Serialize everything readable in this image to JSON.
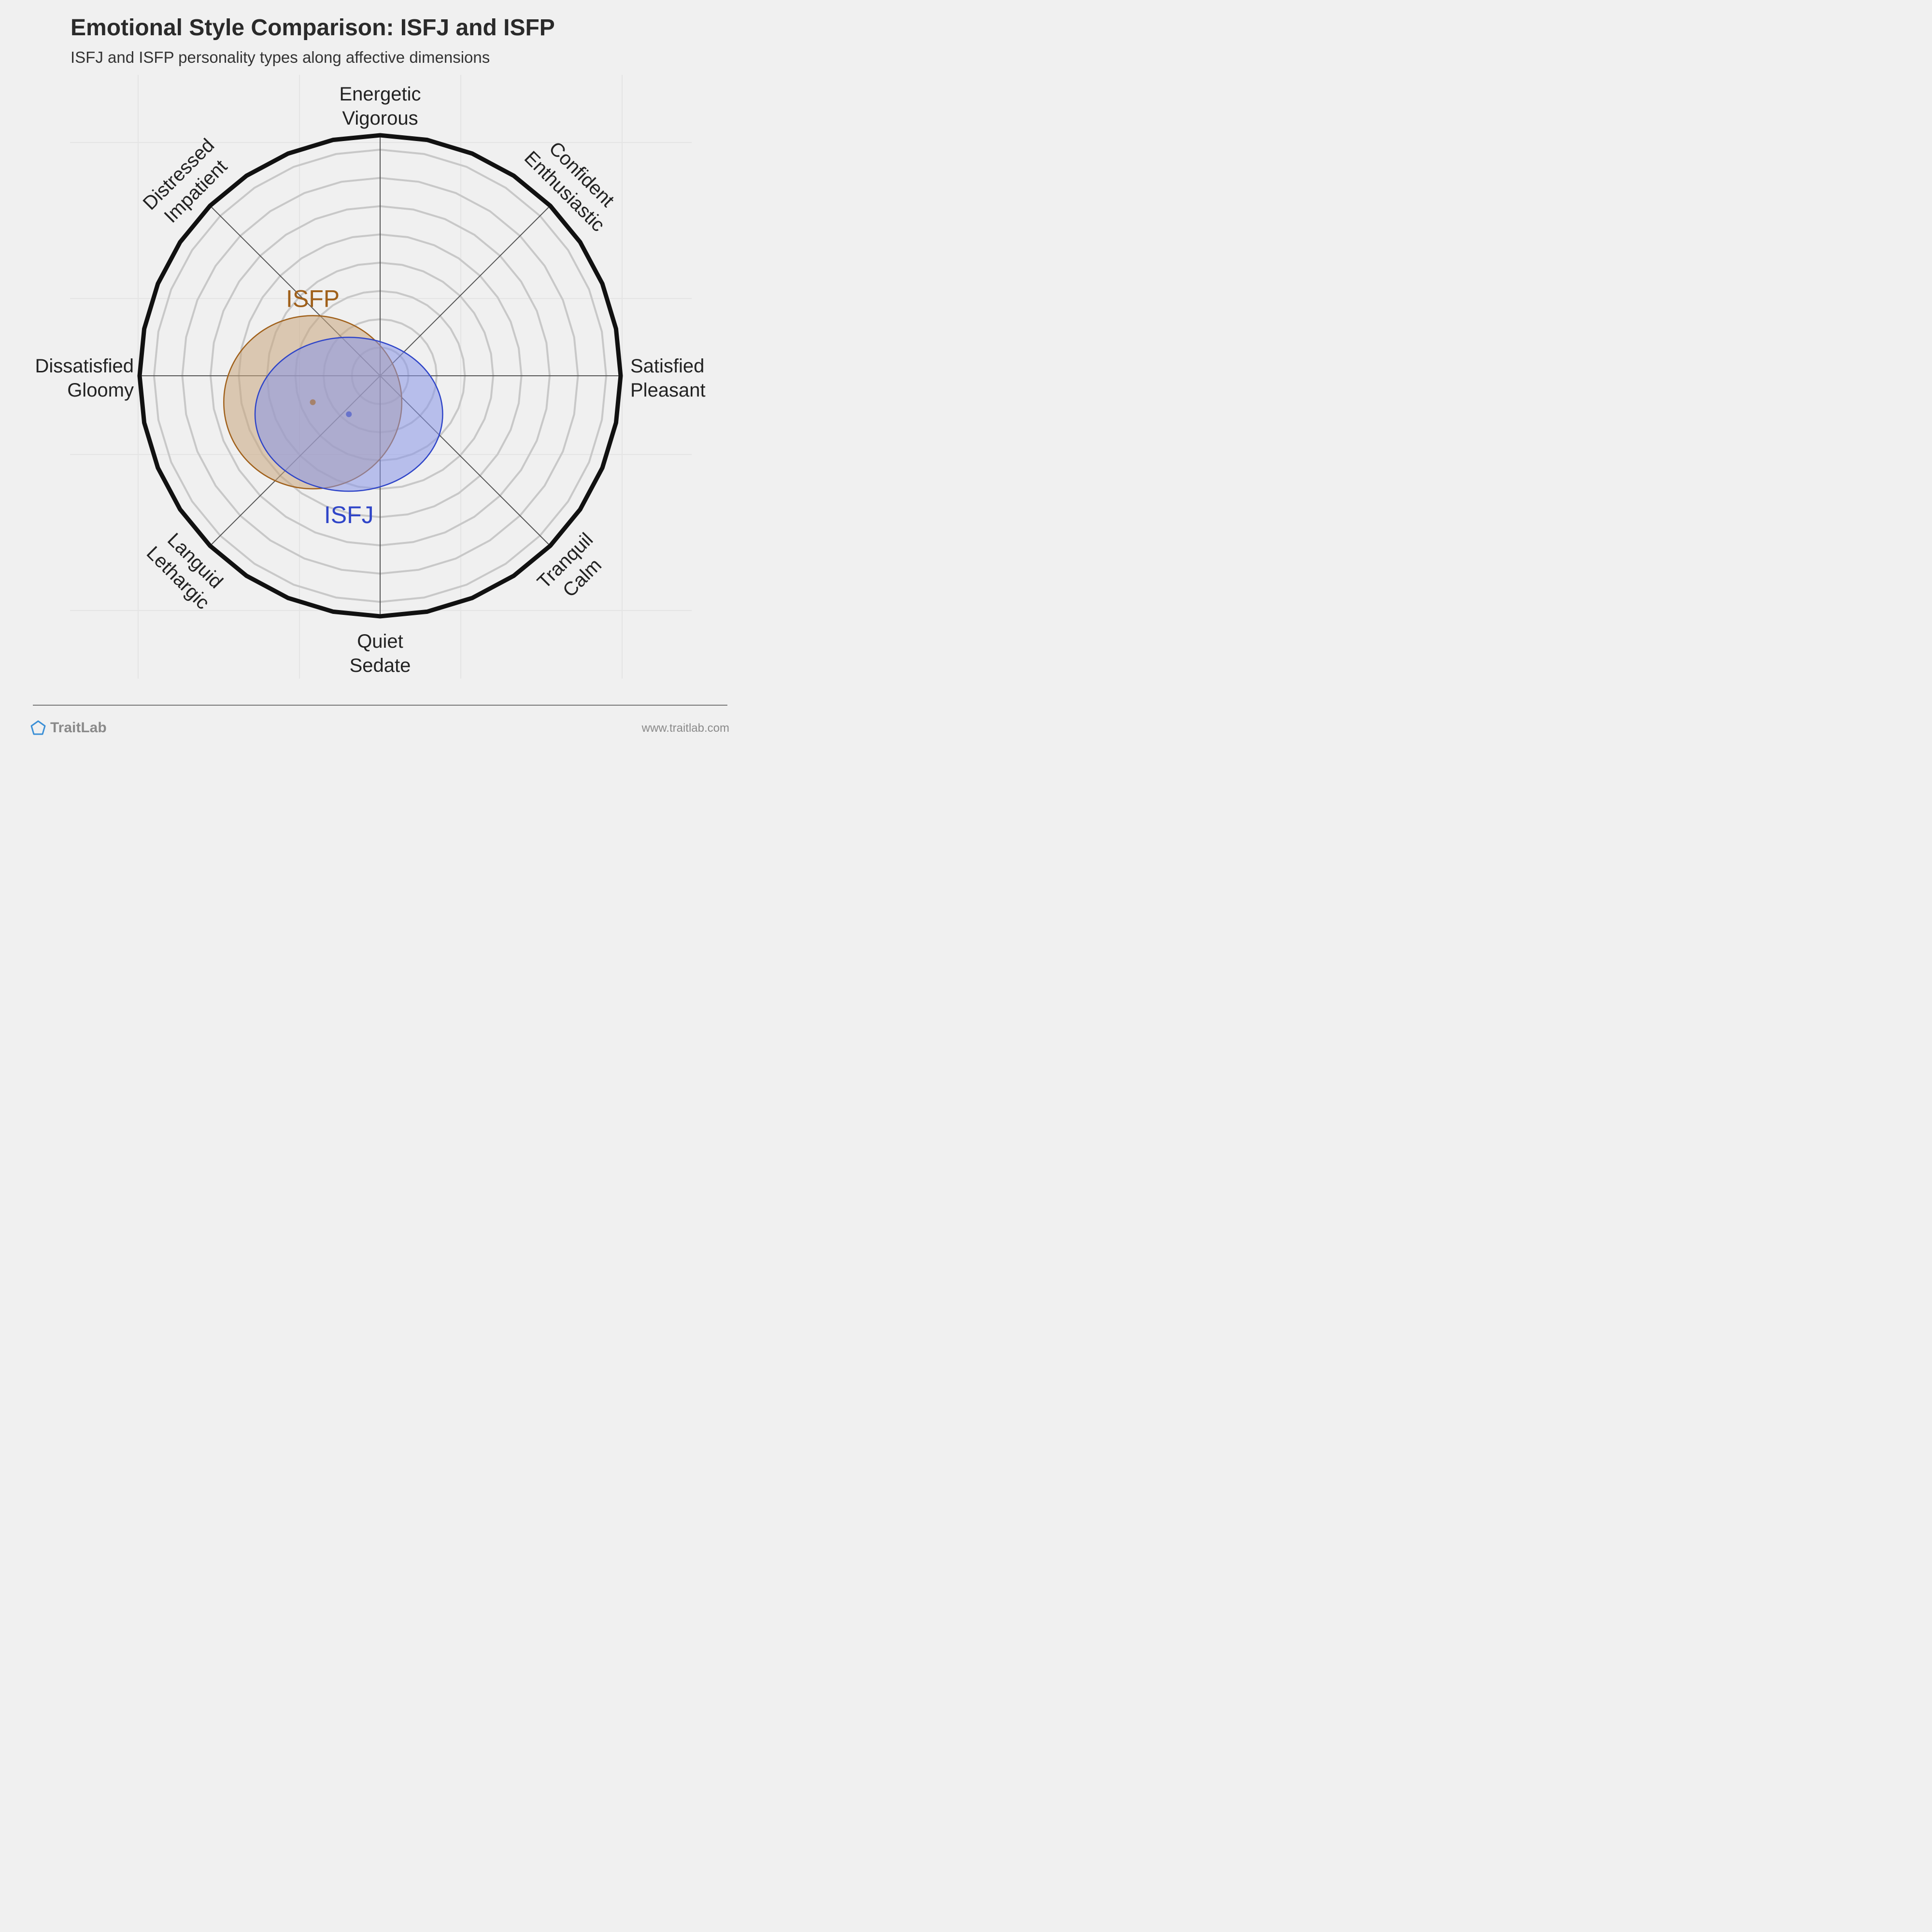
{
  "title": "Emotional Style Comparison: ISFJ and ISFP",
  "subtitle": "ISFJ and ISFP personality types along affective dimensions",
  "brand": {
    "name": "TraitLab",
    "url": "www.traitlab.com",
    "logo_icon": "pentagon-icon"
  },
  "colors": {
    "isfj": "#2f45c8",
    "isfp": "#a0601a",
    "background": "#f0f0f0"
  },
  "chart_data": {
    "type": "scatter",
    "ring_count": 8,
    "axes": [
      {
        "direction": "up",
        "lines": [
          "Energetic",
          "Vigorous"
        ]
      },
      {
        "direction": "up-right",
        "lines": [
          "Confident",
          "Enthusiastic"
        ]
      },
      {
        "direction": "right",
        "lines": [
          "Satisfied",
          "Pleasant"
        ]
      },
      {
        "direction": "down-right",
        "lines": [
          "Tranquil",
          "Calm"
        ]
      },
      {
        "direction": "down",
        "lines": [
          "Quiet",
          "Sedate"
        ]
      },
      {
        "direction": "down-left",
        "lines": [
          "Languid",
          "Lethargic"
        ]
      },
      {
        "direction": "left",
        "lines": [
          "Dissatisfied",
          "Gloomy"
        ]
      },
      {
        "direction": "up-left",
        "lines": [
          "Distressed",
          "Impatient"
        ]
      }
    ],
    "series": [
      {
        "name": "ISFP",
        "color": "#a0601a",
        "fill": "#c9a57e",
        "x": -0.28,
        "y": -0.11,
        "spread_x": 0.37,
        "spread_y": 0.36
      },
      {
        "name": "ISFJ",
        "color": "#2f45c8",
        "fill": "#8896e8",
        "x": -0.13,
        "y": -0.16,
        "spread_x": 0.39,
        "spread_y": 0.32
      }
    ]
  }
}
